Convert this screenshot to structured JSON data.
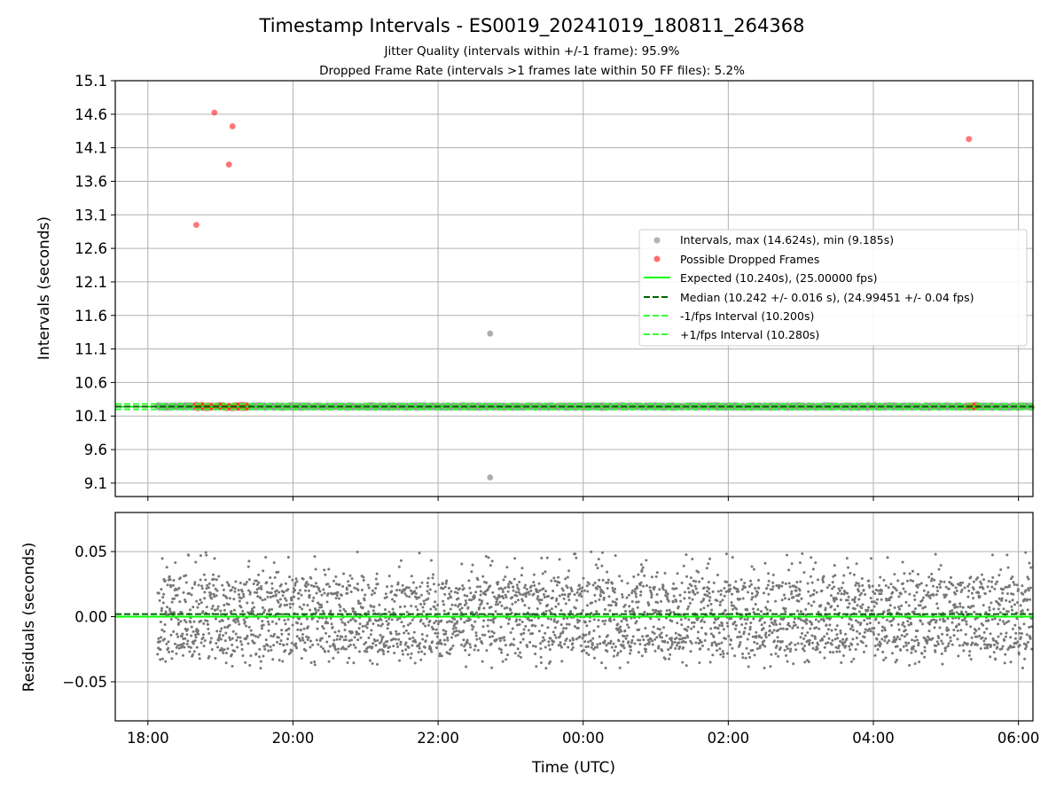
{
  "title": "Timestamp Intervals - ES0019_20241019_180811_264368",
  "subtitle_lines": [
    "Jitter Quality (intervals within +/-1 frame): 95.9%",
    "Dropped Frame Rate (intervals >1 frames late within 50 FF files): 5.2%"
  ],
  "colors": {
    "intervals": "#999999",
    "dropped": "#ff3b3b",
    "expected": "#00ff00",
    "median": "#006400",
    "bounds": "#33ff33",
    "residuals": "#777777",
    "grid": "#b0b0b0"
  },
  "chart_data": [
    {
      "type": "scatter",
      "panel": "intervals",
      "title": "Timestamp Intervals - ES0019_20241019_180811_264368",
      "xlabel": "",
      "ylabel": "Intervals (seconds)",
      "ylim": [
        8.9,
        15.1
      ],
      "y_ticks": [
        "9.1",
        "9.6",
        "10.1",
        "10.6",
        "11.1",
        "11.6",
        "12.1",
        "12.6",
        "13.1",
        "13.6",
        "14.1",
        "14.6",
        "15.1"
      ],
      "x_range_hours": [
        17.55,
        30.2
      ],
      "x_ticks": [
        "18:00",
        "20:00",
        "22:00",
        "00:00",
        "02:00",
        "04:00",
        "06:00"
      ],
      "grid": true,
      "legend_position": "center-right",
      "legend": [
        "Intervals, max (14.624s), min (9.185s)",
        "Possible Dropped Frames",
        "Expected (10.240s), (25.00000 fps)",
        "Median (10.242 +/- 0.016 s), (24.99451 +/- 0.04 fps)",
        "-1/fps Interval (10.200s)",
        "+1/fps Interval (10.280s)"
      ],
      "reference_lines": {
        "expected": 10.24,
        "median": 10.242,
        "lower": 10.2,
        "upper": 10.28
      },
      "interval_baseline": {
        "start_time": "18:08",
        "end_time": "06:11",
        "center": 10.242,
        "spread": 0.02
      },
      "outliers": [
        {
          "time": "22:43",
          "value": 11.33
        },
        {
          "time": "22:43",
          "value": 9.185
        }
      ],
      "dropped_frames": [
        {
          "time": "18:40",
          "value": 12.95
        },
        {
          "time": "18:55",
          "value": 14.624
        },
        {
          "time": "19:07",
          "value": 13.85
        },
        {
          "time": "19:10",
          "value": 14.42
        },
        {
          "time": "05:19",
          "value": 14.23
        }
      ],
      "dropped_near_baseline": [
        {
          "start_time": "18:40",
          "end_time": "18:52",
          "value": 10.242
        },
        {
          "start_time": "18:58",
          "end_time": "19:22",
          "value": 10.242
        },
        {
          "start_time": "05:19",
          "end_time": "05:25",
          "value": 10.242
        }
      ]
    },
    {
      "type": "scatter",
      "panel": "residuals",
      "xlabel": "Time (UTC)",
      "ylabel": "Residuals (seconds)",
      "ylim": [
        -0.08,
        0.08
      ],
      "y_ticks": [
        "−0.05",
        "0.00",
        "0.05"
      ],
      "x_ticks": [
        "18:00",
        "20:00",
        "22:00",
        "00:00",
        "02:00",
        "04:00",
        "06:00"
      ],
      "grid": true,
      "bands": [
        0.02,
        0.0,
        -0.02
      ],
      "band_spread": 0.006,
      "residual_limits": [
        -0.047,
        0.059
      ],
      "reference_lines": {
        "expected": 0.0,
        "median": 0.002
      }
    }
  ]
}
